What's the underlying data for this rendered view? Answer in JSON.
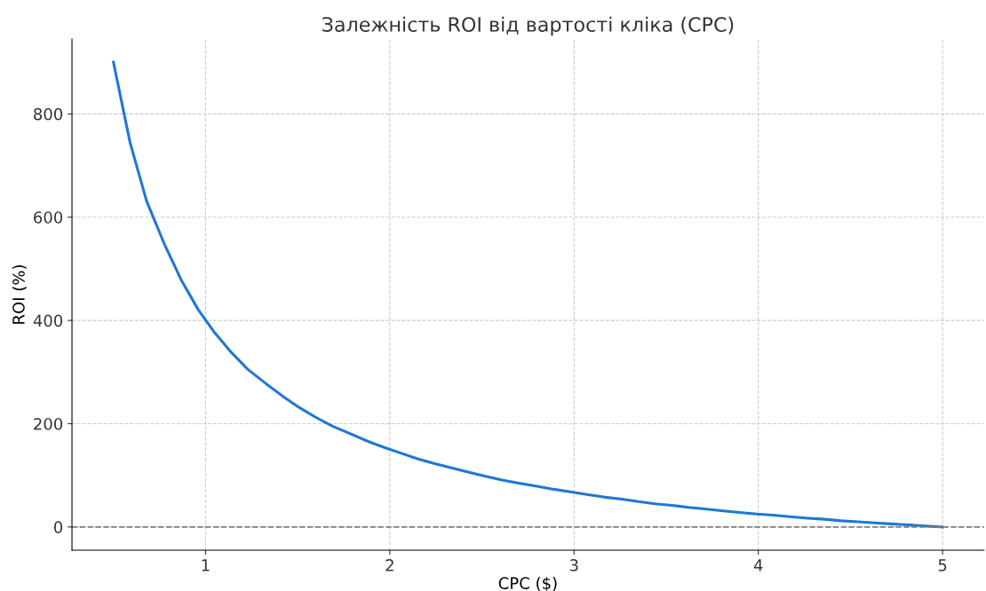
{
  "chart_data": {
    "type": "line",
    "title": "Залежність ROI від вартості кліка (CPC)",
    "xlabel": "CPC ($)",
    "ylabel": "ROI (%)",
    "x": [
      0.5,
      0.59,
      0.68,
      0.78,
      0.87,
      0.96,
      1.05,
      1.14,
      1.23,
      1.33,
      1.42,
      1.51,
      1.6,
      1.69,
      1.79,
      1.88,
      1.97,
      2.06,
      2.15,
      2.24,
      2.34,
      2.43,
      2.52,
      2.61,
      2.7,
      2.8,
      2.89,
      2.98,
      3.07,
      3.16,
      3.26,
      3.35,
      3.44,
      3.53,
      3.62,
      3.71,
      3.81,
      3.9,
      3.99,
      4.08,
      4.17,
      4.27,
      4.36,
      4.45,
      4.54,
      4.63,
      4.72,
      4.82,
      4.91,
      5.0
    ],
    "series": [
      {
        "color": "#1f77d4",
        "values": [
          900,
          745,
          631,
          545,
          477,
          421,
          376,
          338,
          305,
          277,
          253,
          231,
          212,
          195,
          180,
          166,
          154,
          143,
          132,
          123,
          114,
          106,
          98,
          91,
          85,
          79,
          73,
          68,
          63,
          58,
          54,
          49,
          45,
          42,
          38,
          35,
          31,
          28,
          25,
          23,
          20,
          17,
          15,
          12,
          10,
          8,
          6,
          4,
          2,
          0
        ]
      }
    ],
    "xlim": [
      0.275,
      5.225
    ],
    "ylim": [
      -45,
      945
    ],
    "xticks": [
      1,
      2,
      3,
      4,
      5
    ],
    "yticks": [
      0,
      200,
      400,
      600,
      800
    ],
    "grid": true,
    "line_style": "solid",
    "marker": "none",
    "ref_lines": [
      {
        "axis": "y",
        "value": 0,
        "color": "#808080",
        "line_style": "dashed"
      }
    ]
  }
}
